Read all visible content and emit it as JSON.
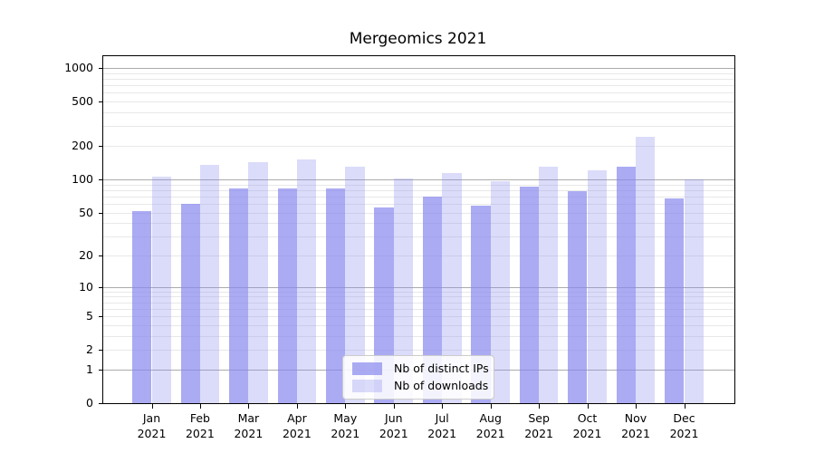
{
  "title": "Mergeomics 2021",
  "chart_data": {
    "type": "bar",
    "title": "Mergeomics 2021",
    "y_scale": "log1p",
    "ylim": [
      0,
      1000
    ],
    "y_ticks": [
      0,
      1,
      2,
      5,
      10,
      20,
      50,
      100,
      200,
      500,
      1000
    ],
    "grid": "both",
    "legend_position": "lower center",
    "x_tick_year": "2021",
    "categories": [
      "Jan",
      "Feb",
      "Mar",
      "Apr",
      "May",
      "Jun",
      "Jul",
      "Aug",
      "Sep",
      "Oct",
      "Nov",
      "Dec"
    ],
    "series": [
      {
        "name": "Nb of distinct IPs",
        "color": "#8888ee",
        "alpha": 0.7,
        "values": [
          51,
          60,
          82,
          83,
          82,
          55,
          70,
          58,
          86,
          78,
          130,
          67
        ]
      },
      {
        "name": "Nb of downloads",
        "color": "#8888ee",
        "alpha": 0.3,
        "values": [
          106,
          135,
          143,
          151,
          130,
          102,
          113,
          96,
          131,
          121,
          241,
          100
        ]
      }
    ]
  },
  "colors": {
    "grid_major": "#ababab",
    "grid_minor": "#e8e8e8",
    "spine": "#000000",
    "text": "#000000",
    "legend_border": "#cccccc"
  }
}
